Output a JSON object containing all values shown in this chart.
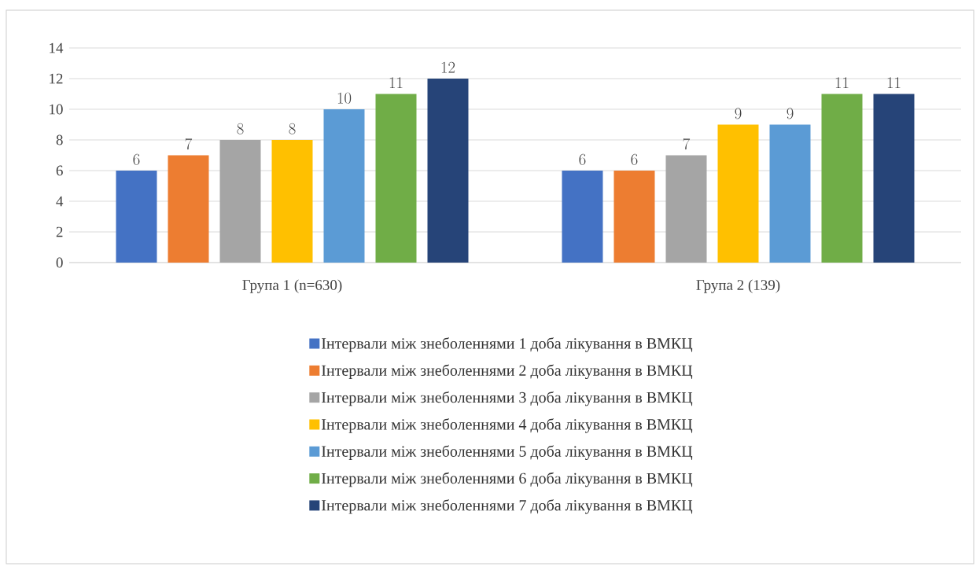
{
  "chart_data": {
    "type": "bar",
    "categories": [
      "Група 1 (n=630)",
      "Група 2 (139)"
    ],
    "series": [
      {
        "name": "Інтервали між знеболеннями 1 доба лікування в ВМКЦ",
        "color": "#4472c4",
        "values": [
          6,
          6
        ]
      },
      {
        "name": "Інтервали між знеболеннями 2 доба лікування в ВМКЦ",
        "color": "#ed7d31",
        "values": [
          7,
          6
        ]
      },
      {
        "name": "Інтервали між знеболеннями 3 доба лікування в ВМКЦ",
        "color": "#a5a5a5",
        "values": [
          8,
          7
        ]
      },
      {
        "name": "Інтервали між знеболеннями 4 доба лікування в ВМКЦ",
        "color": "#ffc000",
        "values": [
          8,
          9
        ]
      },
      {
        "name": "Інтервали між знеболеннями 5 доба лікування в ВМКЦ",
        "color": "#5b9bd5",
        "values": [
          10,
          9
        ]
      },
      {
        "name": "Інтервали між знеболеннями 6 доба лікування в ВМКЦ",
        "color": "#70ad47",
        "values": [
          11,
          11
        ]
      },
      {
        "name": "Інтервали між знеболеннями 7 доба лікування в ВМКЦ",
        "color": "#264478",
        "values": [
          12,
          11
        ]
      }
    ],
    "ylim": [
      0,
      14
    ],
    "yticks": [
      0,
      2,
      4,
      6,
      8,
      10,
      12,
      14
    ],
    "grid": "y",
    "legend": "bottom",
    "data_labels": true
  }
}
